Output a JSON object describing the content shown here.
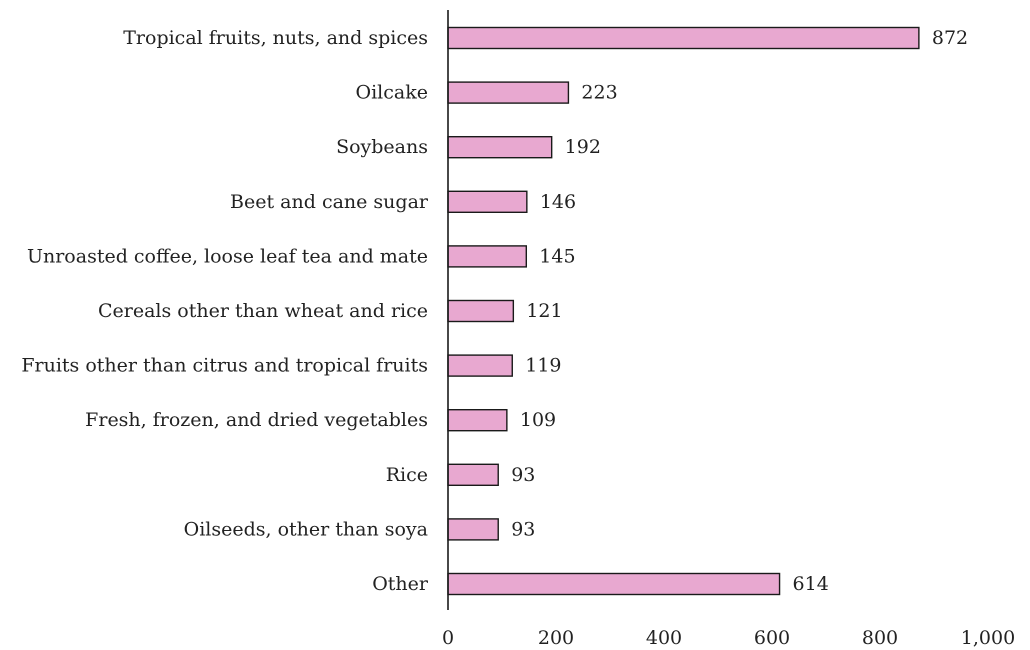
{
  "chart_data": {
    "type": "bar",
    "orientation": "horizontal",
    "categories": [
      "Tropical fruits, nuts, and spices",
      "Oilcake",
      "Soybeans",
      "Beet and cane sugar",
      "Unroasted coffee, loose leaf tea and mate",
      "Cereals other than wheat and rice",
      "Fruits other than citrus and tropical fruits",
      "Fresh, frozen, and dried vegetables",
      "Rice",
      "Oilseeds, other than soya",
      "Other"
    ],
    "values": [
      872,
      223,
      192,
      146,
      145,
      121,
      119,
      109,
      93,
      93,
      614
    ],
    "value_labels": [
      "872",
      "223",
      "192",
      "146",
      "145",
      "121",
      "119",
      "109",
      "93",
      "93",
      "614"
    ],
    "xticks": [
      0,
      200,
      400,
      600,
      800,
      1000
    ],
    "xtick_labels": [
      "0",
      "200",
      "400",
      "600",
      "800",
      "1,000"
    ],
    "xlim": [
      0,
      1000
    ],
    "title": "",
    "xlabel": "",
    "ylabel": "",
    "grid": false,
    "legend": "none",
    "colors": {
      "bar_fill": "#e8a8d0",
      "bar_stroke": "#1a1a1a",
      "axis": "#1a1a1a",
      "text": "#222222"
    }
  }
}
